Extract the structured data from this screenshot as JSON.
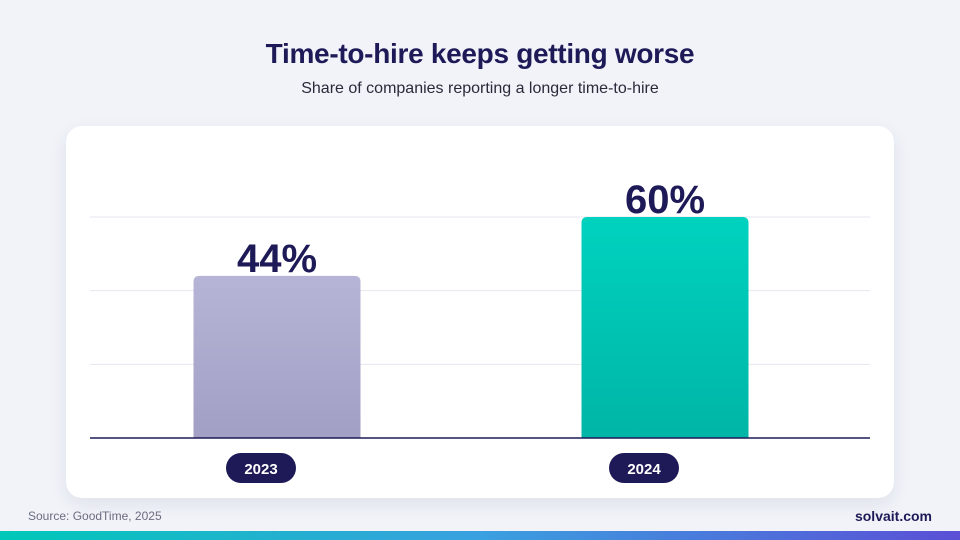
{
  "header": {
    "title": "Time-to-hire keeps getting worse",
    "subtitle": "Share of companies reporting a longer time-to-hire"
  },
  "chart_data": {
    "type": "bar",
    "categories": [
      "2023",
      "2024"
    ],
    "values": [
      44,
      60
    ],
    "value_labels": [
      "44%",
      "60%"
    ],
    "unit": "%",
    "ylim": [
      0,
      60
    ],
    "grid": true,
    "colors": {
      "bar_2023": "#b6b4d6",
      "bar_2023_bottom": "#a19fc4",
      "bar_2024": "#00d2bf",
      "bar_2024_bottom": "#00b5a6",
      "label_text": "#1d1a57",
      "pill_bg": "#1d1a57"
    }
  },
  "footer": {
    "source": "Source: GoodTime, 2025",
    "brand": "solvait.com"
  }
}
